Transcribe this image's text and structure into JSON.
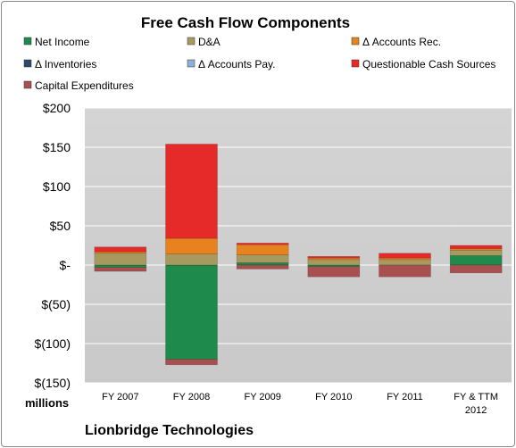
{
  "chart_data": {
    "type": "bar",
    "stacked": true,
    "title": "Free Cash Flow Components",
    "unit_label": "millions",
    "footer": "Lionbridge Technologies",
    "categories": [
      "FY 2007",
      "FY 2008",
      "FY 2009",
      "FY 2010",
      "FY 2011",
      "FY & TTM 2012"
    ],
    "ylim": [
      -150,
      200
    ],
    "y_ticks": [
      200,
      150,
      100,
      50,
      0,
      -50,
      -100,
      -150
    ],
    "y_tick_labels": [
      "$200",
      "$150",
      "$100",
      "$50",
      "$-",
      "$(50)",
      "$(100)",
      "$(150)"
    ],
    "grid": true,
    "legend_position": "top",
    "series": [
      {
        "name": "Net Income",
        "color": "#1e8a4c",
        "values": [
          -3,
          -120,
          3,
          -2,
          0,
          12
        ]
      },
      {
        "name": "D&A",
        "color": "#a89a5e",
        "values": [
          15,
          14,
          10,
          7,
          7,
          7
        ]
      },
      {
        "name": "Δ Accounts Rec.",
        "color": "#e8821e",
        "values": [
          2,
          20,
          13,
          2,
          2,
          2
        ]
      },
      {
        "name": "Δ Inventories",
        "color": "#2e4a6a",
        "values": [
          0,
          0,
          0,
          0,
          0,
          0
        ]
      },
      {
        "name": "Δ Accounts Pay.",
        "color": "#8fb0d6",
        "values": [
          0,
          0,
          0,
          0,
          0,
          0
        ]
      },
      {
        "name": "Questionable Cash Sources",
        "color": "#e62a2a",
        "values": [
          6,
          120,
          2,
          2,
          6,
          4
        ]
      },
      {
        "name": "Capital Expenditures",
        "color": "#a85050",
        "values": [
          -5,
          -7,
          -5,
          -13,
          -15,
          -10
        ]
      }
    ]
  }
}
